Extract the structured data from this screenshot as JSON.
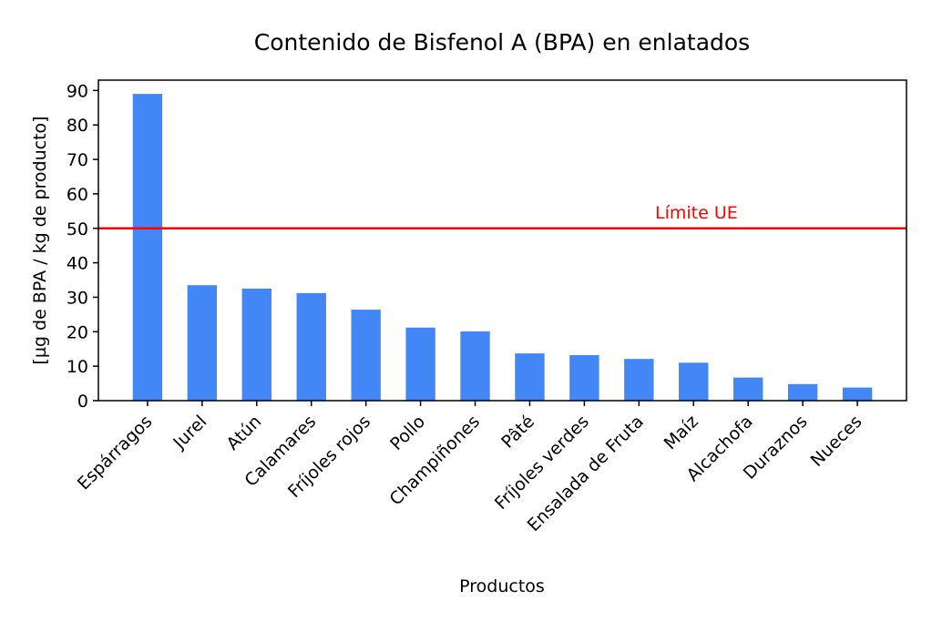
{
  "chart_data": {
    "type": "bar",
    "title": "Contenido de Bisfenol A (BPA) en enlatados",
    "xlabel": "Productos",
    "ylabel": "[µg de BPA / kg de producto]",
    "categories": [
      "Espárragos",
      "Jurel",
      "Atún",
      "Calamares",
      "Fríjoles rojos",
      "Pollo",
      "Champiñones",
      "Pâté",
      "Fríjoles verdes",
      "Ensalada de Fruta",
      "Maíz",
      "Alcachofa",
      "Duraznos",
      "Nueces"
    ],
    "values": [
      89,
      33.5,
      32.5,
      31.2,
      26.4,
      21.2,
      20.1,
      13.7,
      13.2,
      12.1,
      11.0,
      6.7,
      4.8,
      3.8
    ],
    "ylim": [
      0,
      93
    ],
    "yticks": [
      0,
      10,
      20,
      30,
      40,
      50,
      60,
      70,
      80,
      90
    ],
    "bar_color": "#4287f5",
    "reference_line": {
      "value": 50,
      "label": "Límite UE",
      "color": "#ff0000"
    },
    "grid": false
  }
}
